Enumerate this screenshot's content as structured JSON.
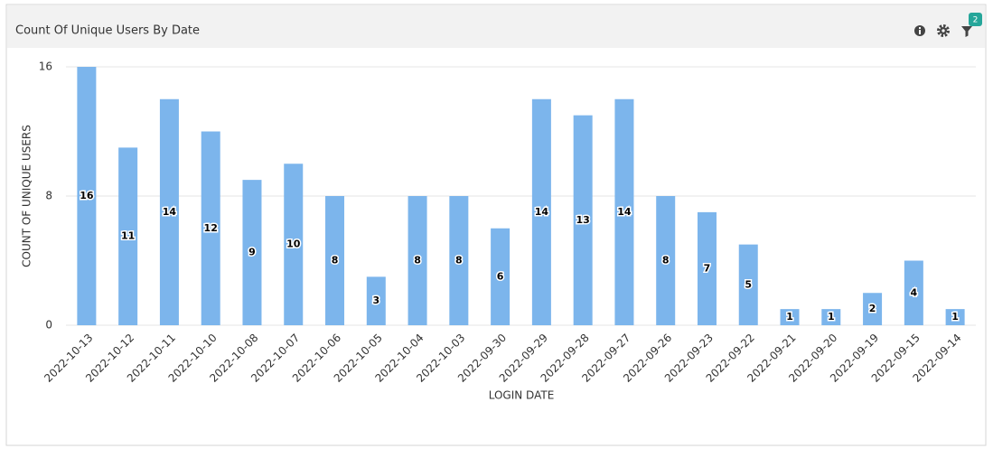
{
  "chart_data": {
    "type": "bar",
    "title": "Count Of Unique Users By Date",
    "categories": [
      "2022-10-13",
      "2022-10-12",
      "2022-10-11",
      "2022-10-10",
      "2022-10-08",
      "2022-10-07",
      "2022-10-06",
      "2022-10-05",
      "2022-10-04",
      "2022-10-03",
      "2022-09-30",
      "2022-09-29",
      "2022-09-28",
      "2022-09-27",
      "2022-09-26",
      "2022-09-23",
      "2022-09-22",
      "2022-09-21",
      "2022-09-20",
      "2022-09-19",
      "2022-09-15",
      "2022-09-14"
    ],
    "values": [
      16,
      11,
      14,
      12,
      9,
      10,
      8,
      3,
      8,
      8,
      6,
      14,
      13,
      14,
      8,
      7,
      5,
      1,
      1,
      2,
      4,
      1
    ],
    "color": "#7cb5ec",
    "x_label": "LOGIN DATE",
    "y_label": "COUNT OF UNIQUE USERS",
    "ylim": [
      0,
      16
    ],
    "yticks": [
      0,
      8,
      16
    ],
    "grid": true
  },
  "toolbar": {
    "filter_badge": "2"
  }
}
